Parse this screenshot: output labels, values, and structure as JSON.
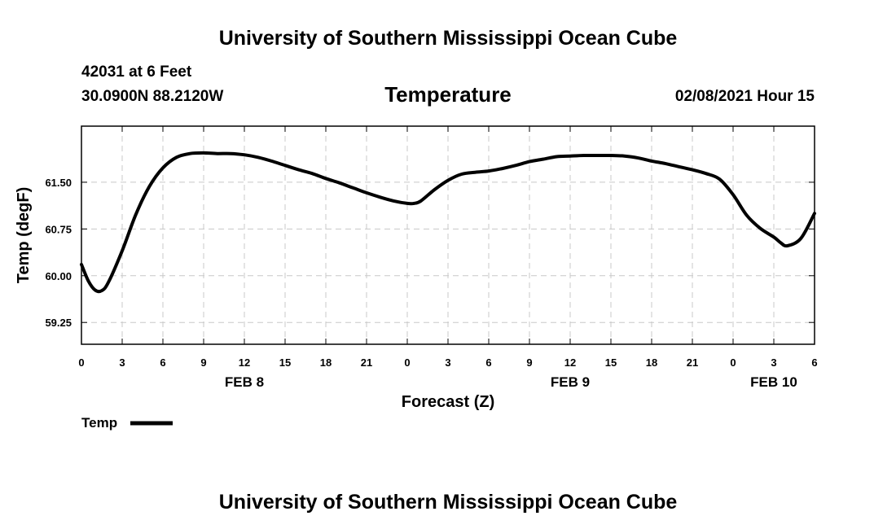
{
  "header": {
    "title": "University of Southern Mississippi Ocean Cube",
    "station": "42031 at 6 Feet",
    "location": "30.0900N 88.2120W",
    "timestamp": "02/08/2021 Hour 15"
  },
  "footer": {
    "title": "University of Southern Mississippi Ocean Cube"
  },
  "chart_data": {
    "type": "line",
    "title": "Temperature",
    "xlabel": "Forecast (Z)",
    "ylabel": "Temp (degF)",
    "xlim": [
      0,
      54
    ],
    "ylim": [
      58.9,
      62.4
    ],
    "y_ticks": [
      59.25,
      60.0,
      60.75,
      61.5
    ],
    "y_tick_labels": [
      "59.25",
      "60.00",
      "60.75",
      "61.50"
    ],
    "x_ticks": [
      0,
      3,
      6,
      9,
      12,
      15,
      18,
      21,
      24,
      27,
      30,
      33,
      36,
      39,
      42,
      45,
      48,
      51,
      54
    ],
    "x_tick_labels": [
      "0",
      "3",
      "6",
      "9",
      "12",
      "15",
      "18",
      "21",
      "0",
      "3",
      "6",
      "9",
      "12",
      "15",
      "18",
      "21",
      "0",
      "3",
      "6"
    ],
    "date_labels": [
      {
        "x": 12,
        "label": "FEB 8"
      },
      {
        "x": 36,
        "label": "FEB 9"
      },
      {
        "x": 51,
        "label": "FEB 10"
      }
    ],
    "grid": true,
    "legend": {
      "position": "bottom-left",
      "entries": [
        "Temp"
      ]
    },
    "series": [
      {
        "name": "Temp",
        "color": "#000000",
        "x": [
          0,
          0.5,
          1,
          1.5,
          2,
          3,
          4,
          5,
          6,
          7,
          8,
          9,
          10,
          11,
          12,
          13,
          14,
          15,
          16,
          17,
          18,
          19,
          20,
          21,
          22,
          23,
          24,
          24.5,
          25,
          26,
          27,
          28,
          29,
          30,
          31,
          32,
          33,
          34,
          35,
          36,
          37,
          38,
          39,
          40,
          41,
          42,
          43,
          44,
          45,
          46,
          47,
          48,
          49,
          50,
          51,
          51.5,
          52,
          53,
          54
        ],
        "values": [
          60.18,
          59.92,
          59.77,
          59.76,
          59.9,
          60.4,
          60.98,
          61.43,
          61.73,
          61.9,
          61.96,
          61.97,
          61.96,
          61.96,
          61.94,
          61.9,
          61.84,
          61.77,
          61.7,
          61.64,
          61.56,
          61.49,
          61.41,
          61.33,
          61.26,
          61.2,
          61.16,
          61.16,
          61.2,
          61.38,
          61.53,
          61.63,
          61.66,
          61.68,
          61.72,
          61.77,
          61.83,
          61.87,
          61.91,
          61.92,
          61.93,
          61.93,
          61.93,
          61.92,
          61.89,
          61.84,
          61.8,
          61.75,
          61.7,
          61.64,
          61.55,
          61.3,
          60.97,
          60.76,
          60.62,
          60.53,
          60.48,
          60.6,
          61.0
        ]
      }
    ]
  }
}
